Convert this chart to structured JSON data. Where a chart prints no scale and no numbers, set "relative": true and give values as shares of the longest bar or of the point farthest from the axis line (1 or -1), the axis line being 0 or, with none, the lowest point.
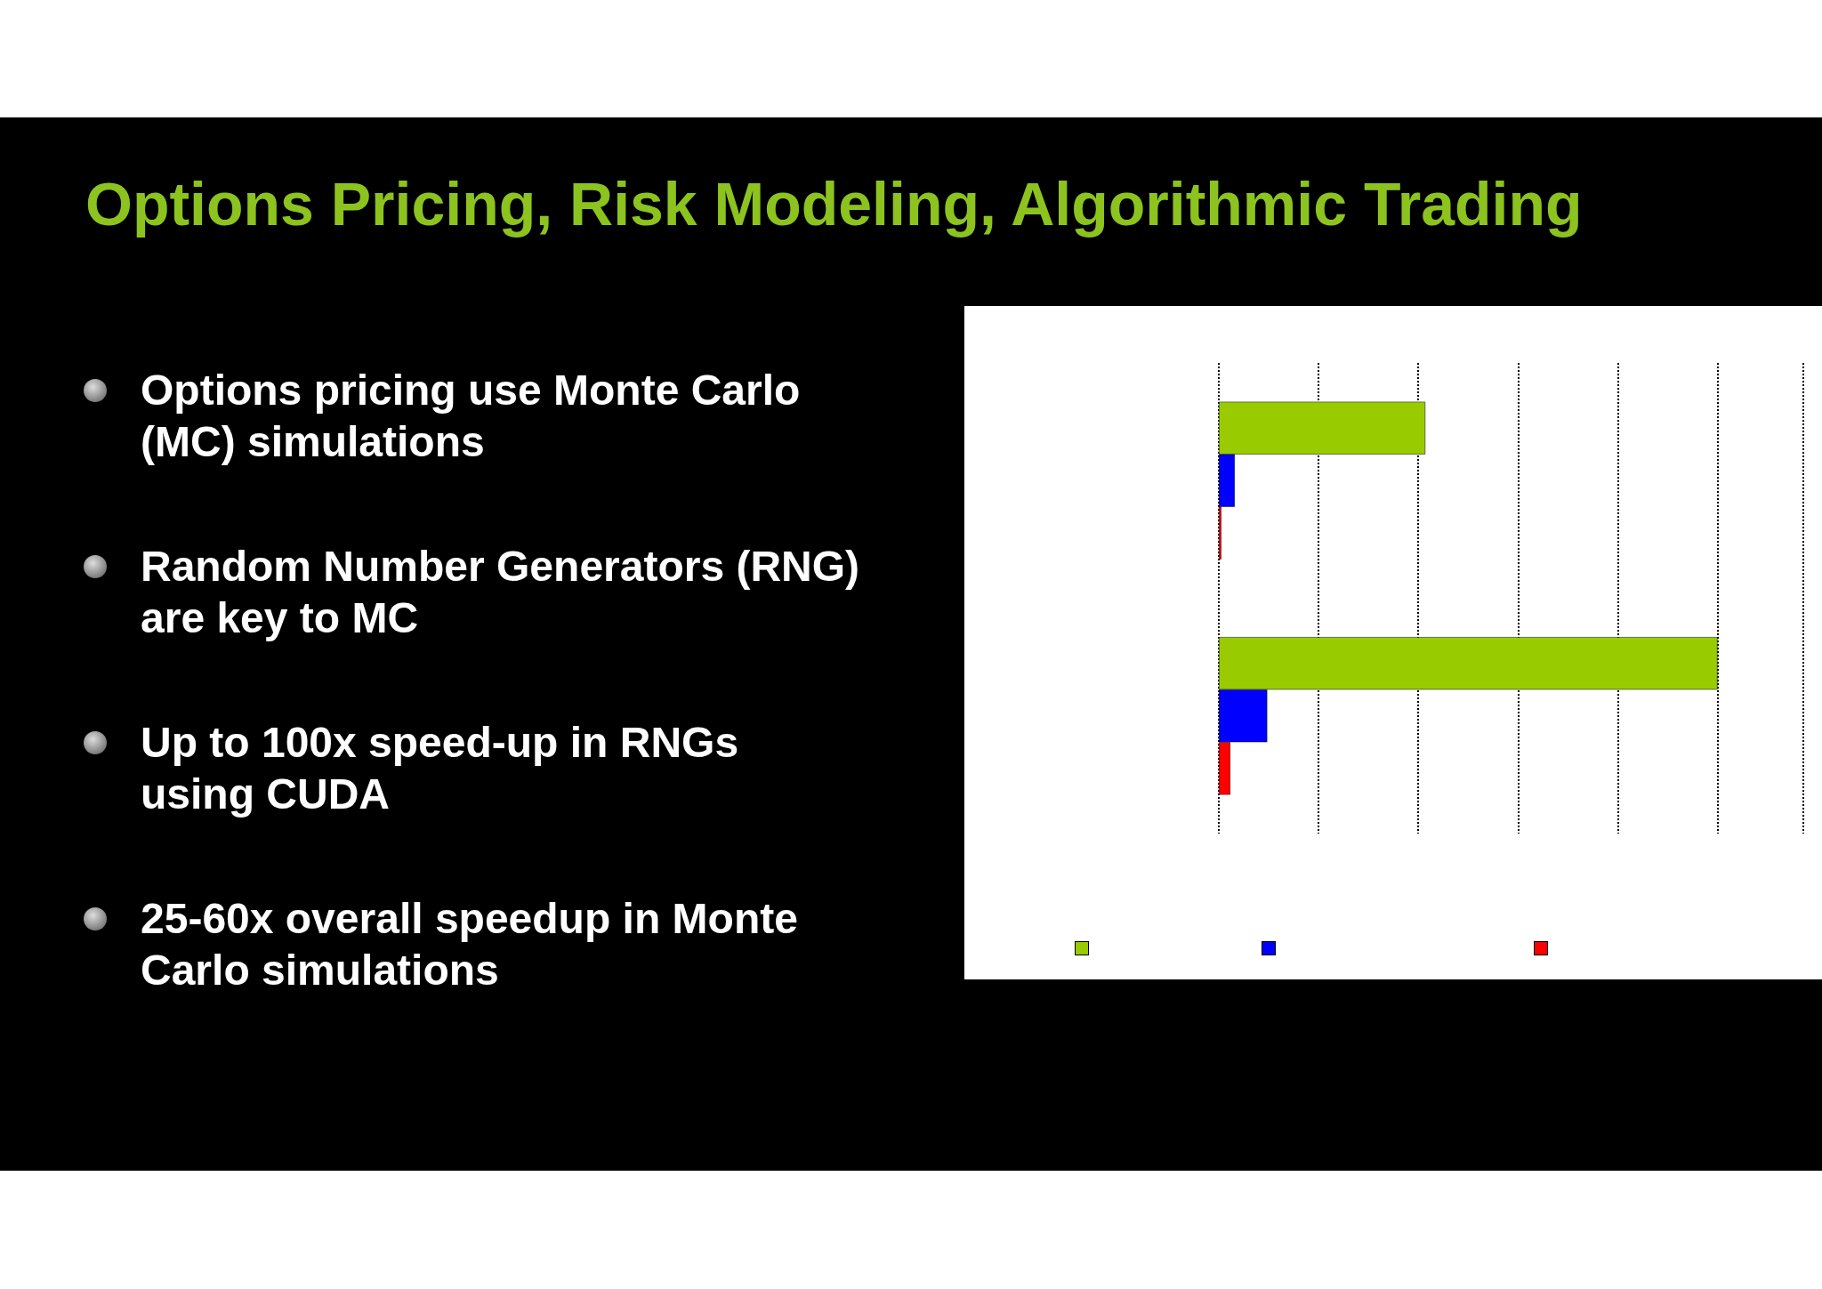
{
  "chart_data": {
    "type": "bar",
    "orientation": "horizontal",
    "relative": true,
    "title": "Options Pricing, Risk Modeling, Algorithmic Trading",
    "annotations": [
      "Options pricing use Monte Carlo (MC) simulations",
      "Random Number Generators (RNG) are key to MC",
      "Up to 100x speed-up in RNGs using CUDA",
      "25-60x overall speedup in Monte Carlo simulations"
    ],
    "categories": [
      null,
      null
    ],
    "series": [
      {
        "color": "#99cc00",
        "values": [
          0.414,
          1
        ]
      },
      {
        "color": "#0000ff",
        "values": [
          0.032,
          0.097
        ]
      },
      {
        "color": "#ff0000",
        "values": [
          0.005,
          0.023
        ]
      }
    ],
    "grid": "x",
    "line_style": "dotted"
  }
}
